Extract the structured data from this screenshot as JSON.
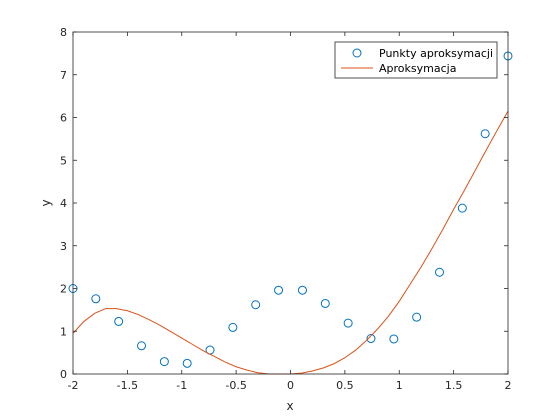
{
  "chart_data": {
    "type": "line",
    "title": "",
    "xlabel": "x",
    "ylabel": "y",
    "xlim": [
      -2,
      2
    ],
    "ylim": [
      0,
      8
    ],
    "xticks": [
      "-2",
      "-1.5",
      "-1",
      "-0.5",
      "0",
      "0.5",
      "1",
      "1.5",
      "2"
    ],
    "yticks": [
      "0",
      "1",
      "2",
      "3",
      "4",
      "5",
      "6",
      "7",
      "8"
    ],
    "grid": false,
    "legend_position": "top-right",
    "series": [
      {
        "name": "Punkty aproksymacji",
        "kind": "markers",
        "marker": "circle-open",
        "color": "#0072BD",
        "x": [
          -2.0,
          -1.79,
          -1.58,
          -1.37,
          -1.16,
          -0.95,
          -0.74,
          -0.53,
          -0.32,
          -0.11,
          0.11,
          0.32,
          0.53,
          0.74,
          0.95,
          1.16,
          1.37,
          1.58,
          1.79,
          2.0
        ],
        "y": [
          2.0,
          1.76,
          1.23,
          0.66,
          0.29,
          0.25,
          0.56,
          1.09,
          1.62,
          1.96,
          1.96,
          1.65,
          1.19,
          0.83,
          0.82,
          1.33,
          2.38,
          3.88,
          5.62,
          7.44
        ]
      },
      {
        "name": "Aproksymacja",
        "kind": "line",
        "color": "#D95319",
        "x": [
          -2.0,
          -1.9,
          -1.8,
          -1.7,
          -1.6,
          -1.5,
          -1.4,
          -1.3,
          -1.2,
          -1.1,
          -1.0,
          -0.9,
          -0.8,
          -0.7,
          -0.6,
          -0.5,
          -0.4,
          -0.3,
          -0.2,
          -0.1,
          0.0,
          0.1,
          0.2,
          0.3,
          0.4,
          0.5,
          0.6,
          0.7,
          0.8,
          0.9,
          1.0,
          1.1,
          1.2,
          1.3,
          1.4,
          1.5,
          1.6,
          1.7,
          1.8,
          1.9,
          2.0
        ],
        "y": [
          0.95,
          1.23,
          1.42,
          1.53,
          1.53,
          1.48,
          1.39,
          1.27,
          1.14,
          0.99,
          0.84,
          0.69,
          0.54,
          0.41,
          0.28,
          0.17,
          0.09,
          0.03,
          0.0,
          0.0,
          0.0,
          0.02,
          0.07,
          0.14,
          0.24,
          0.38,
          0.56,
          0.79,
          1.05,
          1.35,
          1.7,
          2.1,
          2.5,
          2.93,
          3.38,
          3.85,
          4.3,
          4.77,
          5.24,
          5.7,
          6.15
        ]
      }
    ]
  }
}
